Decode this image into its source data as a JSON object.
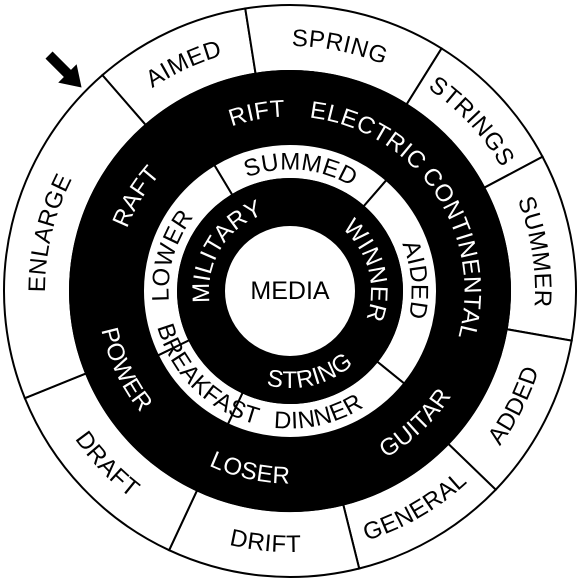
{
  "puzzle": {
    "center_word": "MEDIA",
    "rings": [
      {
        "ring": "outer",
        "fill": "white",
        "words": [
          "AIMED",
          "SPRING",
          "STRINGS",
          "SUMMER",
          "ADDED",
          "GENERAL",
          "DRIFT",
          "DRAFT",
          "ENLARGE"
        ]
      },
      {
        "ring": "second",
        "fill": "black",
        "words": [
          "RIFT",
          "ELECTRIC",
          "CONTINENTAL",
          "GUITAR",
          "LOSER",
          "POWER",
          "RAFT"
        ]
      },
      {
        "ring": "third",
        "fill": "white",
        "words": [
          "SUMMED",
          "AIDED",
          "DINNER",
          "BREAKFAST",
          "LOWER"
        ]
      },
      {
        "ring": "inner",
        "fill": "black",
        "words": [
          "WINNER",
          "STRING",
          "MILITARY"
        ]
      }
    ],
    "colors": {
      "dark": "#000000",
      "light": "#ffffff"
    },
    "start_marker": "arrow-icon"
  }
}
